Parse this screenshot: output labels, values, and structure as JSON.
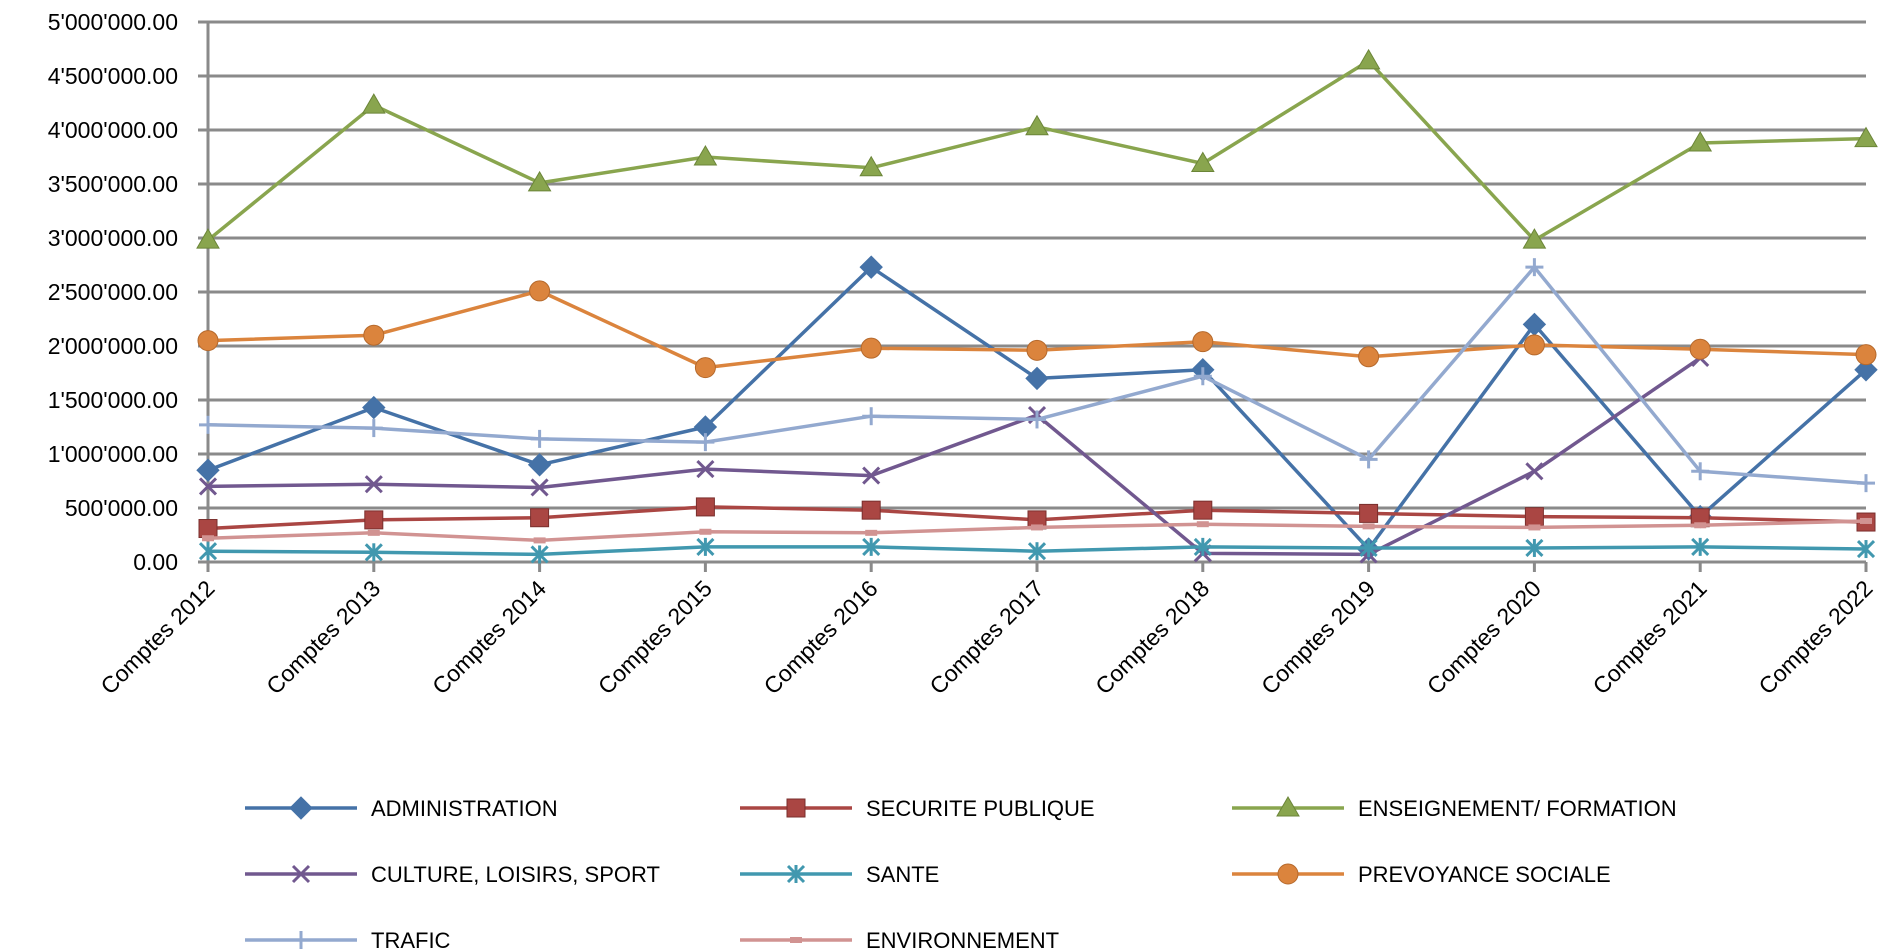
{
  "chart_data": {
    "type": "line",
    "title": "",
    "xlabel": "",
    "ylabel": "",
    "ylim": [
      0,
      5000000
    ],
    "y_ticks": [
      "0.00",
      "500'000.00",
      "1'000'000.00",
      "1'500'000.00",
      "2'000'000.00",
      "2'500'000.00",
      "3'000'000.00",
      "3'500'000.00",
      "4'000'000.00",
      "4'500'000.00",
      "5'000'000.00"
    ],
    "y_tick_values": [
      0,
      500000,
      1000000,
      1500000,
      2000000,
      2500000,
      3000000,
      3500000,
      4000000,
      4500000,
      5000000
    ],
    "categories": [
      "Comptes 2012",
      "Comptes 2013",
      "Comptes 2014",
      "Comptes 2015",
      "Comptes 2016",
      "Comptes 2017",
      "Comptes 2018",
      "Comptes 2019",
      "Comptes 2020",
      "Comptes 2021",
      "Comptes 2022"
    ],
    "grid": true,
    "legend_position": "bottom",
    "series": [
      {
        "name": "ADMINISTRATION",
        "color": "#4572A7",
        "marker": "diamond",
        "values": [
          850000,
          1430000,
          900000,
          1250000,
          2730000,
          1700000,
          1780000,
          120000,
          2200000,
          420000,
          1780000
        ]
      },
      {
        "name": "SECURITE PUBLIQUE",
        "color": "#AA4643",
        "marker": "square",
        "values": [
          310000,
          390000,
          410000,
          510000,
          480000,
          390000,
          480000,
          450000,
          420000,
          410000,
          370000
        ]
      },
      {
        "name": "ENSEIGNEMENT/   FORMATION",
        "color": "#89A54E",
        "marker": "triangle",
        "values": [
          2980000,
          4230000,
          3510000,
          3750000,
          3650000,
          4030000,
          3690000,
          4640000,
          2980000,
          3880000,
          3920000
        ]
      },
      {
        "name": "CULTURE, LOISIRS, SPORT",
        "color": "#71588F",
        "marker": "x",
        "values": [
          700000,
          720000,
          690000,
          860000,
          800000,
          1360000,
          80000,
          70000,
          840000,
          1890000,
          null
        ]
      },
      {
        "name": "SANTE",
        "color": "#4198AF",
        "marker": "star",
        "values": [
          100000,
          90000,
          70000,
          140000,
          140000,
          100000,
          140000,
          130000,
          130000,
          140000,
          120000
        ]
      },
      {
        "name": "PREVOYANCE SOCIALE",
        "color": "#DB843D",
        "marker": "circle",
        "values": [
          2050000,
          2100000,
          2510000,
          1800000,
          1980000,
          1960000,
          2040000,
          1900000,
          2010000,
          1970000,
          1920000
        ]
      },
      {
        "name": "TRAFIC",
        "color": "#93A9CF",
        "marker": "plus",
        "values": [
          1270000,
          1240000,
          1140000,
          1110000,
          1350000,
          1320000,
          1720000,
          950000,
          2730000,
          840000,
          730000
        ]
      },
      {
        "name": "ENVIRONNEMENT",
        "color": "#D19392",
        "marker": "dash",
        "values": [
          220000,
          270000,
          200000,
          280000,
          270000,
          320000,
          350000,
          330000,
          320000,
          340000,
          380000
        ]
      }
    ]
  }
}
